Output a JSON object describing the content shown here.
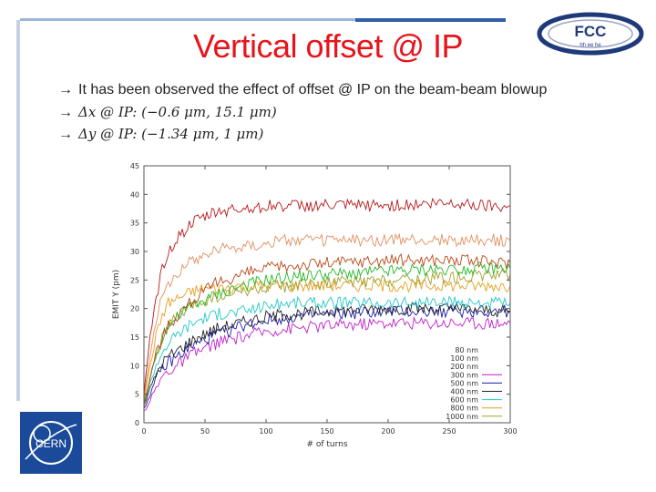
{
  "slide": {
    "title": "Vertical offset @ IP",
    "bullets": [
      {
        "arrow": "→",
        "text": "It has been observed the effect of offset @ IP on the beam-beam blowup"
      },
      {
        "arrow": "→",
        "text": "Δx @ IP: (−0.6 μm, 15.1 μm)"
      },
      {
        "arrow": "→",
        "text": "Δy @ IP: (−1.34 μm, 1 μm)"
      }
    ]
  },
  "logos": {
    "fcc": {
      "text": "FCC",
      "subtext": "hh ee he",
      "color": "#1f3a7a"
    },
    "cern": {
      "text": "CERN",
      "color": "#1b4a9a"
    }
  },
  "colors": {
    "title": "#e8141b",
    "accent_blue": "#2f5fa8"
  },
  "chart_data": {
    "type": "line",
    "title": "",
    "xlabel": "# of turns",
    "ylabel": "EMIT Y (pm)",
    "xlim": [
      0,
      300
    ],
    "ylim": [
      0,
      45
    ],
    "xticks": [
      0,
      50,
      100,
      150,
      200,
      250,
      300
    ],
    "yticks": [
      0,
      5,
      10,
      15,
      20,
      25,
      30,
      35,
      40,
      45
    ],
    "grid": false,
    "legend_position": "bottom-right",
    "x": [
      0,
      5,
      10,
      15,
      20,
      30,
      40,
      50,
      60,
      80,
      100,
      120,
      150,
      200,
      250,
      300
    ],
    "series": [
      {
        "name": "80 nm",
        "color": "#ffffff",
        "values": [
          2,
          4,
          6,
          8,
          9,
          10.5,
          12,
          13,
          14,
          15,
          16,
          16.5,
          17,
          17.5,
          17.5,
          17.5
        ]
      },
      {
        "name": "100 nm",
        "color": "#ffffff",
        "values": [
          2,
          4,
          6,
          8,
          9,
          10.5,
          12,
          13,
          14,
          15,
          16,
          16.5,
          17,
          17.5,
          17.5,
          17.5
        ]
      },
      {
        "name": "200 nm",
        "color": "#ffffff",
        "values": [
          2,
          4,
          6,
          8,
          9,
          10.5,
          12,
          13,
          14,
          15,
          16,
          16.5,
          17,
          17.5,
          17.5,
          17.5
        ]
      },
      {
        "name": "300 nm",
        "color": "#c020c8",
        "values": [
          2,
          4,
          6,
          8,
          9,
          10.5,
          12,
          13,
          14,
          15,
          16,
          16.5,
          17,
          17.5,
          17.5,
          17.5
        ]
      },
      {
        "name": "500 nm",
        "color": "#1a1aa8",
        "values": [
          2.5,
          5,
          7.5,
          9.5,
          10.5,
          12,
          13.5,
          14.5,
          15.5,
          17,
          18,
          18.5,
          19,
          19.5,
          19.5,
          19.5
        ]
      },
      {
        "name": "400 nm",
        "color": "#222222",
        "values": [
          3,
          6,
          8.5,
          10.5,
          11.5,
          13,
          14.5,
          15.5,
          16.5,
          17.5,
          18.5,
          19,
          19.5,
          20,
          20,
          19.5
        ]
      },
      {
        "name": "600 nm",
        "color": "#22c8c8",
        "values": [
          3,
          7,
          10,
          12.5,
          14,
          16,
          17.5,
          18.5,
          19,
          19.5,
          20.5,
          21,
          21,
          21,
          21,
          21
        ]
      },
      {
        "name": "800 nm",
        "color": "#e6a020",
        "values": [
          4,
          10,
          15,
          19,
          21,
          22,
          23,
          23.5,
          23.5,
          24,
          24,
          24,
          24,
          24,
          24,
          24
        ]
      },
      {
        "name": "1000 nm",
        "color": "#a0a030",
        "values": [
          3,
          8,
          12,
          15,
          17,
          19,
          20.5,
          21.5,
          22,
          23,
          23.5,
          24,
          24.5,
          25,
          25.5,
          26
        ]
      },
      {
        "name": "",
        "color": "#22b822",
        "values": [
          3,
          8,
          12,
          15,
          17,
          19,
          20.5,
          21.5,
          22.5,
          24,
          25,
          25.5,
          26,
          26.5,
          27,
          27
        ]
      },
      {
        "name": "",
        "color": "#b84818",
        "values": [
          3,
          8,
          12,
          15,
          17,
          19.5,
          21.5,
          23,
          24.5,
          26,
          27,
          27.5,
          28,
          28.5,
          28.5,
          28
        ]
      },
      {
        "name": "",
        "color": "#e09060",
        "values": [
          4,
          12,
          18,
          22,
          24.5,
          27,
          28.5,
          29.5,
          30.5,
          31,
          31.5,
          32,
          32,
          32,
          32,
          32
        ]
      },
      {
        "name": "",
        "color": "#b81818",
        "values": [
          5,
          15,
          22,
          27,
          30,
          33,
          35,
          36,
          37,
          37.5,
          38,
          38,
          38,
          38,
          38.5,
          38
        ]
      }
    ]
  }
}
